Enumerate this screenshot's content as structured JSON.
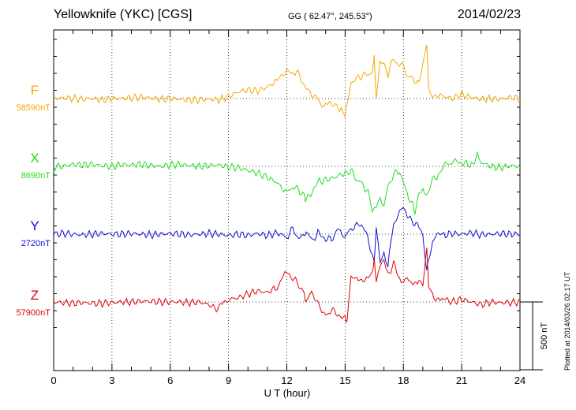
{
  "header": {
    "station": "Yellowknife (YKC)  [CGS]",
    "coords": "GG ( 62.47°, 245.53°)",
    "date": "2014/02/23"
  },
  "footer": {
    "plotted": "Plotted at 2014/03/26 02:17 UT",
    "scale_label": "500 nT"
  },
  "chart_data": {
    "type": "line",
    "xlabel": "U T (hour)",
    "xlim": [
      0,
      24
    ],
    "xticks": [
      "0",
      "3",
      "6",
      "9",
      "12",
      "15",
      "18",
      "21",
      "24"
    ],
    "scale_nT": 500,
    "grid": true,
    "series": [
      {
        "name": "F",
        "baseline": "58590nT",
        "color": "#f5a800",
        "x": [
          0,
          0.5,
          1,
          1.5,
          2,
          2.5,
          3,
          3.5,
          4,
          4.5,
          5,
          5.5,
          6,
          6.5,
          7,
          7.5,
          8,
          8.5,
          9,
          9.5,
          10,
          10.5,
          11,
          11.5,
          11.8,
          12,
          12.2,
          12.5,
          12.8,
          13,
          13.2,
          13.5,
          13.8,
          14,
          14.2,
          14.5,
          14.8,
          15,
          15.1,
          15.3,
          15.6,
          15.9,
          16.2,
          16.4,
          16.5,
          16.6,
          16.8,
          17,
          17.2,
          17.5,
          17.8,
          18,
          18.2,
          18.5,
          18.8,
          19,
          19.2,
          19.3,
          19.5,
          19.8,
          20,
          20.5,
          21,
          21.5,
          22,
          22.5,
          23,
          23.5,
          24
        ],
        "values": [
          0,
          5,
          0,
          -5,
          0,
          -10,
          0,
          0,
          5,
          10,
          5,
          -5,
          0,
          -5,
          -10,
          -10,
          -5,
          -10,
          15,
          50,
          65,
          55,
          85,
          130,
          180,
          210,
          180,
          200,
          130,
          90,
          40,
          10,
          -45,
          -30,
          -20,
          -60,
          -70,
          -110,
          -40,
          120,
          150,
          170,
          180,
          200,
          300,
          -10,
          250,
          270,
          180,
          300,
          230,
          250,
          160,
          150,
          100,
          240,
          410,
          80,
          30,
          0,
          20,
          0,
          30,
          10,
          -5,
          0,
          -5,
          10,
          0
        ]
      },
      {
        "name": "X",
        "baseline": "8690nT",
        "color": "#22dd22",
        "x": [
          0,
          0.5,
          1,
          1.5,
          2,
          2.5,
          3,
          3.5,
          4,
          4.5,
          5,
          5.5,
          6,
          6.5,
          7,
          7.5,
          8,
          8.5,
          9,
          9.5,
          10,
          10.5,
          11,
          11.5,
          12,
          12.3,
          12.6,
          12.9,
          13,
          13.3,
          13.5,
          14,
          14.5,
          15,
          15.3,
          15.6,
          15.9,
          16.2,
          16.4,
          16.6,
          16.8,
          17,
          17.2,
          17.5,
          17.8,
          18,
          18.2,
          18.5,
          18.6,
          18.8,
          19,
          19.2,
          19.5,
          19.8,
          20,
          20.3,
          20.6,
          21,
          21.5,
          21.8,
          22,
          22.5,
          23,
          23.5,
          24
        ],
        "values": [
          0,
          0,
          15,
          10,
          15,
          5,
          0,
          15,
          10,
          15,
          5,
          0,
          10,
          15,
          5,
          0,
          5,
          10,
          -5,
          -10,
          -30,
          -50,
          -80,
          -120,
          -200,
          -150,
          -170,
          -220,
          -250,
          -180,
          -120,
          -100,
          -80,
          -50,
          -30,
          -100,
          -130,
          -200,
          -340,
          -280,
          -220,
          -300,
          -150,
          -60,
          -30,
          -100,
          -210,
          -280,
          -350,
          -180,
          -160,
          -210,
          -100,
          -60,
          0,
          20,
          30,
          30,
          10,
          80,
          30,
          0,
          -10,
          5,
          0
        ]
      },
      {
        "name": "Y",
        "baseline": "2720nT",
        "color": "#1010d0",
        "x": [
          0,
          0.5,
          1,
          1.5,
          2,
          2.5,
          3,
          3.5,
          4,
          4.5,
          5,
          5.5,
          6,
          6.5,
          7,
          7.5,
          8,
          8.5,
          9,
          9.5,
          10,
          10.5,
          11,
          11.5,
          12,
          12.3,
          12.6,
          13,
          13.3,
          13.6,
          14,
          14.3,
          14.6,
          15,
          15.3,
          15.6,
          16,
          16.3,
          16.5,
          16.6,
          16.8,
          17,
          17.2,
          17.5,
          17.8,
          18,
          18.2,
          18.5,
          18.8,
          19,
          19.2,
          19.5,
          19.8,
          20,
          20.5,
          21,
          21.5,
          22,
          22.5,
          23,
          23.5,
          24
        ],
        "values": [
          0,
          5,
          0,
          -5,
          0,
          5,
          0,
          0,
          5,
          0,
          -5,
          0,
          5,
          0,
          -5,
          0,
          5,
          0,
          -10,
          0,
          -10,
          5,
          -10,
          10,
          -20,
          40,
          -30,
          30,
          -50,
          10,
          -30,
          -40,
          30,
          -20,
          40,
          60,
          40,
          -100,
          -200,
          50,
          -220,
          -150,
          -230,
          80,
          150,
          190,
          130,
          90,
          50,
          -30,
          -280,
          -50,
          0,
          -10,
          5,
          0,
          10,
          -5,
          0,
          5,
          0,
          0
        ]
      },
      {
        "name": "Z",
        "baseline": "57900nT",
        "color": "#e00000",
        "x": [
          0,
          0.5,
          1,
          1.5,
          2,
          2.5,
          3,
          3.5,
          4,
          4.5,
          5,
          5.5,
          6,
          6.5,
          7,
          7.5,
          8,
          8.3,
          8.6,
          9,
          9.5,
          10,
          10.5,
          11,
          11.5,
          11.8,
          12,
          12.3,
          12.6,
          12.9,
          13,
          13.2,
          13.5,
          13.8,
          14,
          14.3,
          14.6,
          15,
          15.1,
          15.3,
          15.6,
          16,
          16.2,
          16.4,
          16.5,
          16.6,
          16.8,
          17,
          17.2,
          17.5,
          17.8,
          18,
          18.2,
          18.5,
          18.8,
          19,
          19.2,
          19.3,
          19.5,
          19.8,
          20,
          20.5,
          21,
          21.5,
          22,
          22.5,
          23,
          23.5,
          24
        ],
        "values": [
          0,
          -5,
          -10,
          -5,
          -10,
          -10,
          -5,
          0,
          0,
          5,
          5,
          0,
          0,
          0,
          -5,
          0,
          -20,
          -50,
          -30,
          20,
          30,
          60,
          80,
          70,
          110,
          180,
          210,
          180,
          130,
          60,
          -20,
          60,
          30,
          -80,
          -100,
          -60,
          -80,
          -120,
          -150,
          170,
          190,
          160,
          170,
          200,
          330,
          150,
          290,
          320,
          200,
          280,
          180,
          160,
          190,
          120,
          170,
          140,
          400,
          120,
          40,
          20,
          30,
          0,
          20,
          0,
          -20,
          0,
          -5,
          -5,
          0
        ]
      }
    ]
  }
}
